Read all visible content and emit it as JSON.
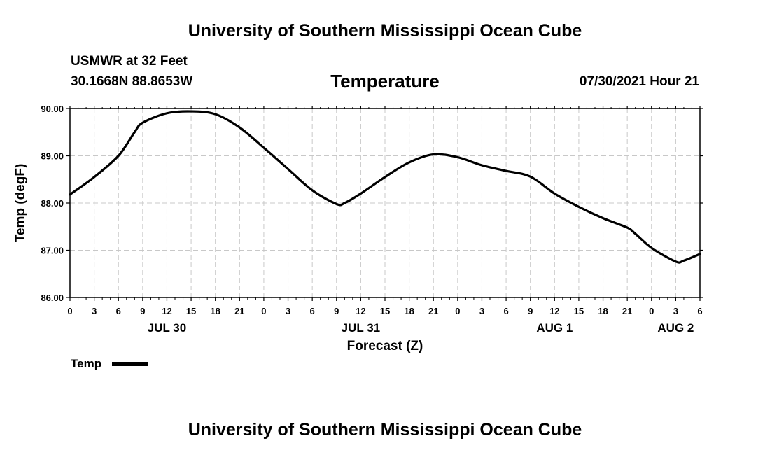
{
  "header": {
    "title": "University of Southern Mississippi Ocean Cube",
    "station": "USMWR at 32 Feet",
    "coords": "30.1668N  88.8653W",
    "variable": "Temperature",
    "timestamp": "07/30/2021 Hour 21"
  },
  "footer": {
    "title": "University of Southern Mississippi Ocean Cube"
  },
  "chart_data": {
    "type": "line",
    "title": "Temperature",
    "xlabel": "Forecast (Z)",
    "ylabel": "Temp (degF)",
    "ylim": [
      86.0,
      90.0
    ],
    "xlim_hours": [
      0,
      78
    ],
    "y_ticks": [
      "86.00",
      "87.00",
      "88.00",
      "89.00",
      "90.00"
    ],
    "x_tick_labels": [
      "0",
      "3",
      "6",
      "9",
      "12",
      "15",
      "18",
      "21",
      "0",
      "3",
      "6",
      "9",
      "12",
      "15",
      "18",
      "21",
      "0",
      "3",
      "6",
      "9",
      "12",
      "15",
      "18",
      "21",
      "0",
      "3",
      "6"
    ],
    "date_labels": [
      {
        "label": "JUL 30",
        "hour": 12
      },
      {
        "label": "JUL 31",
        "hour": 36
      },
      {
        "label": "AUG 1",
        "hour": 60
      },
      {
        "label": "AUG 2",
        "hour": 75
      }
    ],
    "grid": true,
    "legend": "bottom-left",
    "series": [
      {
        "name": "Temp",
        "color": "#000000",
        "x": [
          0,
          3,
          6,
          8,
          9,
          12,
          15,
          18,
          21,
          24,
          27,
          30,
          33,
          34,
          36,
          39,
          42,
          45,
          48,
          51,
          54,
          57,
          60,
          63,
          66,
          69,
          70,
          72,
          75,
          76,
          78
        ],
        "y": [
          88.18,
          88.55,
          89.0,
          89.5,
          89.7,
          89.9,
          89.94,
          89.88,
          89.6,
          89.17,
          88.72,
          88.27,
          87.98,
          88.0,
          88.2,
          88.55,
          88.86,
          89.03,
          88.97,
          88.8,
          88.68,
          88.56,
          88.2,
          87.92,
          87.68,
          87.48,
          87.35,
          87.05,
          86.76,
          86.78,
          86.92
        ]
      }
    ]
  }
}
